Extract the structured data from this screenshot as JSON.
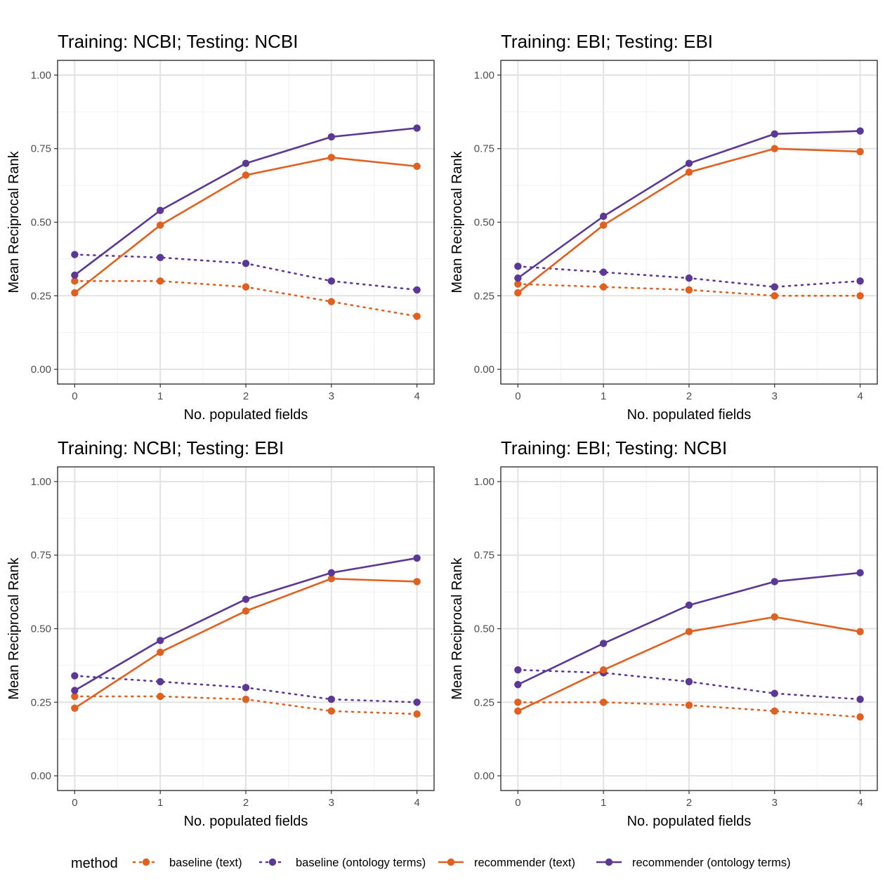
{
  "legend": {
    "title": "method",
    "position": "bottom",
    "entries": [
      {
        "label": "baseline (text)",
        "color": "#E0611F",
        "linetype": "dotted"
      },
      {
        "label": "baseline (ontology terms)",
        "color": "#5B3896",
        "linetype": "dotted"
      },
      {
        "label": "recommender (text)",
        "color": "#E0611F",
        "linetype": "solid"
      },
      {
        "label": "recommender (ontology terms)",
        "color": "#5B3896",
        "linetype": "solid"
      }
    ]
  },
  "chart_data": [
    {
      "type": "line",
      "title": "Training: NCBI; Testing: NCBI",
      "xlabel": "No. populated fields",
      "ylabel": "Mean Reciprocal Rank",
      "x": [
        0,
        1,
        2,
        3,
        4
      ],
      "xticks": [
        "0",
        "1",
        "2",
        "3",
        "4"
      ],
      "yticks": [
        "0.00",
        "0.25",
        "0.50",
        "0.75",
        "1.00"
      ],
      "xlim": [
        -0.2,
        4.2
      ],
      "ylim": [
        -0.05,
        1.05
      ],
      "grid": true,
      "series": [
        {
          "name": "baseline (text)",
          "values": [
            0.3,
            0.3,
            0.28,
            0.23,
            0.18
          ]
        },
        {
          "name": "baseline (ontology terms)",
          "values": [
            0.39,
            0.38,
            0.36,
            0.3,
            0.27
          ]
        },
        {
          "name": "recommender (text)",
          "values": [
            0.26,
            0.49,
            0.66,
            0.72,
            0.69
          ]
        },
        {
          "name": "recommender (ontology terms)",
          "values": [
            0.32,
            0.54,
            0.7,
            0.79,
            0.82
          ]
        }
      ]
    },
    {
      "type": "line",
      "title": "Training: EBI; Testing: EBI",
      "xlabel": "No. populated fields",
      "ylabel": "Mean Reciprocal Rank",
      "x": [
        0,
        1,
        2,
        3,
        4
      ],
      "xticks": [
        "0",
        "1",
        "2",
        "3",
        "4"
      ],
      "yticks": [
        "0.00",
        "0.25",
        "0.50",
        "0.75",
        "1.00"
      ],
      "xlim": [
        -0.2,
        4.2
      ],
      "ylim": [
        -0.05,
        1.05
      ],
      "grid": true,
      "series": [
        {
          "name": "baseline (text)",
          "values": [
            0.29,
            0.28,
            0.27,
            0.25,
            0.25
          ]
        },
        {
          "name": "baseline (ontology terms)",
          "values": [
            0.35,
            0.33,
            0.31,
            0.28,
            0.3
          ]
        },
        {
          "name": "recommender (text)",
          "values": [
            0.26,
            0.49,
            0.67,
            0.75,
            0.74
          ]
        },
        {
          "name": "recommender (ontology terms)",
          "values": [
            0.31,
            0.52,
            0.7,
            0.8,
            0.81
          ]
        }
      ]
    },
    {
      "type": "line",
      "title": "Training: NCBI; Testing: EBI",
      "xlabel": "No. populated fields",
      "ylabel": "Mean Reciprocal Rank",
      "x": [
        0,
        1,
        2,
        3,
        4
      ],
      "xticks": [
        "0",
        "1",
        "2",
        "3",
        "4"
      ],
      "yticks": [
        "0.00",
        "0.25",
        "0.50",
        "0.75",
        "1.00"
      ],
      "xlim": [
        -0.2,
        4.2
      ],
      "ylim": [
        -0.05,
        1.05
      ],
      "grid": true,
      "series": [
        {
          "name": "baseline (text)",
          "values": [
            0.27,
            0.27,
            0.26,
            0.22,
            0.21
          ]
        },
        {
          "name": "baseline (ontology terms)",
          "values": [
            0.34,
            0.32,
            0.3,
            0.26,
            0.25
          ]
        },
        {
          "name": "recommender (text)",
          "values": [
            0.23,
            0.42,
            0.56,
            0.67,
            0.66
          ]
        },
        {
          "name": "recommender (ontology terms)",
          "values": [
            0.29,
            0.46,
            0.6,
            0.69,
            0.74
          ]
        }
      ]
    },
    {
      "type": "line",
      "title": "Training: EBI; Testing: NCBI",
      "xlabel": "No. populated fields",
      "ylabel": "Mean Reciprocal Rank",
      "x": [
        0,
        1,
        2,
        3,
        4
      ],
      "xticks": [
        "0",
        "1",
        "2",
        "3",
        "4"
      ],
      "yticks": [
        "0.00",
        "0.25",
        "0.50",
        "0.75",
        "1.00"
      ],
      "xlim": [
        -0.2,
        4.2
      ],
      "ylim": [
        -0.05,
        1.05
      ],
      "grid": true,
      "series": [
        {
          "name": "baseline (text)",
          "values": [
            0.25,
            0.25,
            0.24,
            0.22,
            0.2
          ]
        },
        {
          "name": "baseline (ontology terms)",
          "values": [
            0.36,
            0.35,
            0.32,
            0.28,
            0.26
          ]
        },
        {
          "name": "recommender (text)",
          "values": [
            0.22,
            0.36,
            0.49,
            0.54,
            0.49
          ]
        },
        {
          "name": "recommender (ontology terms)",
          "values": [
            0.31,
            0.45,
            0.58,
            0.66,
            0.69
          ]
        }
      ]
    }
  ]
}
